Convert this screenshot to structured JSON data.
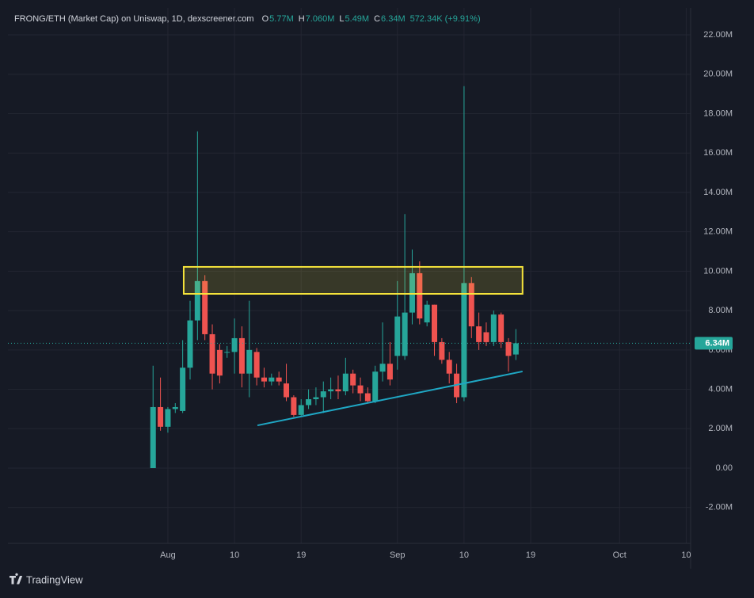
{
  "chart_data": {
    "type": "candlestick",
    "title": "FRONG/ETH (Market Cap) on Uniswap, 1D, dexscreener.com",
    "ohlc_legend": [
      {
        "key": "O",
        "value": "5.77M"
      },
      {
        "key": "H",
        "value": "7.060M"
      },
      {
        "key": "L",
        "value": "5.49M"
      },
      {
        "key": "C",
        "value": "6.34M"
      }
    ],
    "change": "572.34K (+9.91%)",
    "x": [
      -2,
      -1,
      0,
      1,
      2,
      3,
      4,
      5,
      6,
      7,
      8,
      9,
      10,
      11,
      12,
      13,
      14,
      15,
      16,
      17,
      18,
      19,
      20,
      21,
      22,
      23,
      24,
      25,
      26,
      27,
      28,
      29,
      30,
      31,
      32,
      33,
      34,
      35,
      36,
      37,
      38,
      39,
      40,
      41,
      42,
      43,
      44,
      45,
      46,
      47
    ],
    "open": [
      0,
      3.1,
      2.1,
      3.0,
      2.9,
      5.1,
      7.5,
      9.5,
      6.8,
      6.0,
      5.9,
      5.9,
      6.6,
      4.8,
      5.9,
      4.6,
      4.4,
      4.6,
      4.3,
      3.6,
      2.7,
      3.2,
      3.5,
      3.6,
      3.9,
      4.0,
      3.9,
      4.8,
      4.2,
      3.8,
      3.4,
      4.9,
      5.3,
      5.7,
      5.7,
      7.9,
      9.9,
      7.4,
      8.3,
      6.4,
      5.5,
      4.8,
      3.6,
      9.4,
      7.2,
      6.9,
      6.4,
      7.8,
      6.4,
      5.77
    ],
    "high": [
      5.2,
      4.6,
      3.1,
      3.3,
      6.5,
      8.5,
      17.1,
      9.8,
      7.3,
      6.3,
      6.2,
      7.6,
      7.2,
      8.5,
      6.1,
      5.1,
      4.8,
      4.9,
      5.3,
      3.7,
      3.5,
      4.0,
      4.1,
      4.4,
      4.6,
      4.7,
      5.6,
      5.0,
      4.6,
      4.1,
      5.2,
      7.4,
      6.4,
      9.5,
      12.9,
      11.1,
      10.5,
      8.5,
      8.3,
      6.6,
      5.9,
      5.3,
      19.4,
      9.7,
      7.9,
      7.4,
      8.0,
      7.9,
      6.6,
      7.06
    ],
    "low": [
      0,
      1.9,
      1.8,
      2.8,
      2.8,
      4.5,
      6.5,
      6.5,
      4.0,
      4.3,
      5.6,
      4.8,
      4.1,
      3.6,
      4.2,
      4.1,
      4.2,
      4.2,
      3.4,
      2.6,
      2.6,
      3.0,
      3.2,
      2.8,
      3.5,
      3.5,
      3.7,
      3.8,
      3.4,
      3.3,
      3.3,
      4.4,
      4.2,
      5.0,
      5.5,
      7.3,
      7.3,
      7.2,
      5.7,
      5.3,
      4.3,
      3.3,
      3.4,
      6.6,
      6.0,
      6.2,
      6.2,
      6.1,
      4.9,
      5.49
    ],
    "close": [
      3.1,
      2.1,
      3.0,
      3.1,
      5.1,
      7.5,
      9.5,
      6.8,
      4.8,
      4.7,
      5.9,
      6.6,
      4.8,
      6.0,
      4.6,
      4.4,
      4.6,
      4.4,
      3.6,
      2.7,
      3.2,
      3.5,
      3.6,
      3.9,
      4.0,
      3.9,
      4.8,
      4.2,
      3.8,
      3.4,
      4.9,
      5.3,
      4.5,
      7.7,
      7.9,
      9.9,
      7.6,
      8.3,
      6.4,
      5.5,
      4.8,
      3.6,
      9.4,
      7.2,
      6.4,
      6.4,
      7.8,
      6.4,
      5.7,
      6.34
    ],
    "up_color": "#26a69a",
    "down_color": "#ef5350",
    "xlim": [
      -21.6,
      70.6
    ],
    "xticks": [
      {
        "value": 0,
        "label": "Aug"
      },
      {
        "value": 9,
        "label": "10"
      },
      {
        "value": 18,
        "label": "19"
      },
      {
        "value": 31,
        "label": "Sep"
      },
      {
        "value": 40,
        "label": "10"
      },
      {
        "value": 49,
        "label": "19"
      },
      {
        "value": 61,
        "label": "Oct"
      },
      {
        "value": 70,
        "label": "10"
      }
    ],
    "ylim": [
      -3.82,
      23.37
    ],
    "yticks": [
      {
        "value": -2,
        "label": "-2.00M"
      },
      {
        "value": 0,
        "label": "0.00"
      },
      {
        "value": 2,
        "label": "2.00M"
      },
      {
        "value": 4,
        "label": "4.00M"
      },
      {
        "value": 6,
        "label": "6.00M"
      },
      {
        "value": 8,
        "label": "8.00M"
      },
      {
        "value": 10,
        "label": "10.00M"
      },
      {
        "value": 12,
        "label": "12.00M"
      },
      {
        "value": 14,
        "label": "14.00M"
      },
      {
        "value": 16,
        "label": "16.00M"
      },
      {
        "value": 18,
        "label": "18.00M"
      },
      {
        "value": 20,
        "label": "20.00M"
      },
      {
        "value": 22,
        "label": "22.00M"
      }
    ],
    "grid": true,
    "last_price": {
      "value": 6.34,
      "label": "6.34M"
    },
    "zone": {
      "x": [
        2.14,
        47.9
      ],
      "y": [
        8.85,
        10.22
      ],
      "color": "#f5e33b"
    },
    "trendline": {
      "x": [
        12.1,
        47.9
      ],
      "y": [
        2.17,
        4.91
      ],
      "color": "#1fa7c4"
    }
  },
  "footer": {
    "brand": "TradingView"
  }
}
